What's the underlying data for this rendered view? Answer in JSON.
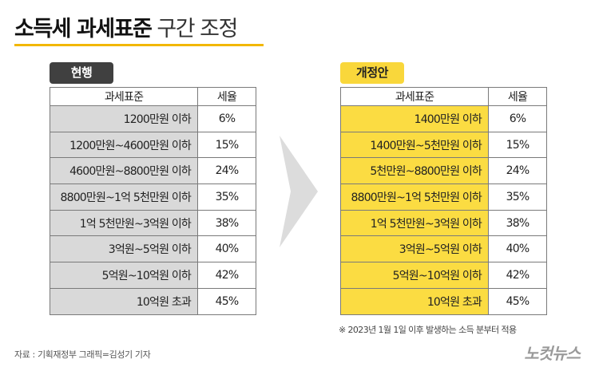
{
  "title": {
    "bold": "소득세 과세표준",
    "light": "구간 조정"
  },
  "current": {
    "badge": "현행",
    "headers": [
      "과세표준",
      "세율"
    ],
    "rows": [
      {
        "bracket": "1200만원 이하",
        "rate": "6%"
      },
      {
        "bracket": "1200만원~4600만원 이하",
        "rate": "15%"
      },
      {
        "bracket": "4600만원~8800만원 이하",
        "rate": "24%"
      },
      {
        "bracket": "8800만원~1억 5천만원 이하",
        "rate": "35%"
      },
      {
        "bracket": "1억 5천만원~3억원 이하",
        "rate": "38%"
      },
      {
        "bracket": "3억원~5억원 이하",
        "rate": "40%"
      },
      {
        "bracket": "5억원~10억원 이하",
        "rate": "42%"
      },
      {
        "bracket": "10억원 초과",
        "rate": "45%"
      }
    ]
  },
  "proposal": {
    "badge": "개정안",
    "headers": [
      "과세표준",
      "세율"
    ],
    "rows": [
      {
        "bracket": "1400만원 이하",
        "rate": "6%"
      },
      {
        "bracket": "1400만원~5천만원 이하",
        "rate": "15%"
      },
      {
        "bracket": "5천만원~8800만원 이하",
        "rate": "24%"
      },
      {
        "bracket": "8800만원~1억 5천만원 이하",
        "rate": "35%"
      },
      {
        "bracket": "1억 5천만원~3억원 이하",
        "rate": "38%"
      },
      {
        "bracket": "3억원~5억원 이하",
        "rate": "40%"
      },
      {
        "bracket": "5억원~10억원 이하",
        "rate": "42%"
      },
      {
        "bracket": "10억원 초과",
        "rate": "45%"
      }
    ]
  },
  "note": "※ 2023년 1월 1일 이후 발생하는 소득 분부터 적용",
  "source": "자료 : 기획재정부    그래픽=김성기 기자",
  "logo": "노컷뉴스",
  "colors": {
    "accent": "#f2b705",
    "proposal_fill": "#fbdc42",
    "current_fill": "#d9d9d9",
    "current_badge": "#404040"
  }
}
